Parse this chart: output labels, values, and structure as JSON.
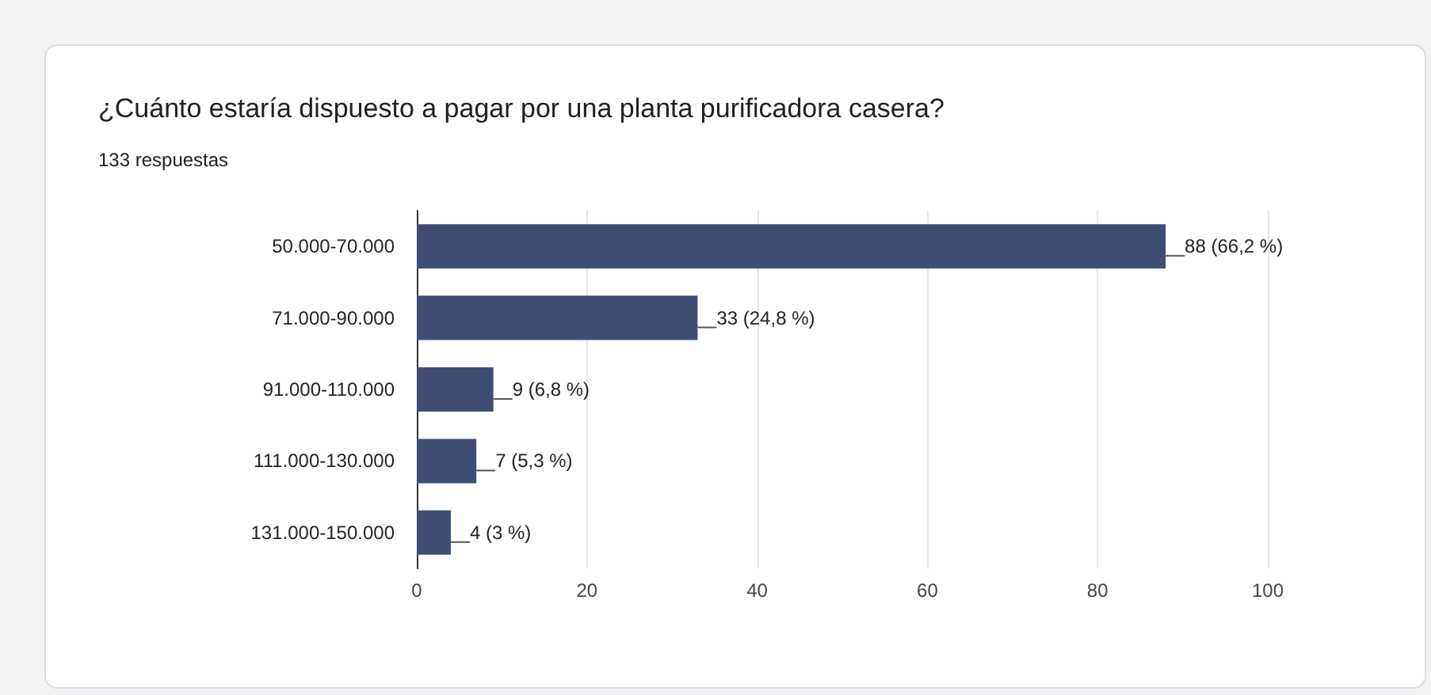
{
  "chart_data": {
    "type": "bar",
    "orientation": "horizontal",
    "title": "¿Cuánto estaría dispuesto a pagar por una planta purificadora casera?",
    "subtitle": "133 respuestas",
    "categories": [
      "50.000-70.000",
      "71.000-90.000",
      "91.000-110.000",
      "111.000-130.000",
      "131.000-150.000"
    ],
    "values": [
      88,
      33,
      9,
      7,
      4
    ],
    "value_labels": [
      "88 (66,2 %)",
      "33 (24,8 %)",
      "9 (6,8 %)",
      "7 (5,3 %)",
      "4 (3 %)"
    ],
    "color": "#3f4d75",
    "xlim": [
      0,
      100
    ],
    "xticks": [
      0,
      20,
      40,
      60,
      80,
      100
    ],
    "grid": "x"
  }
}
